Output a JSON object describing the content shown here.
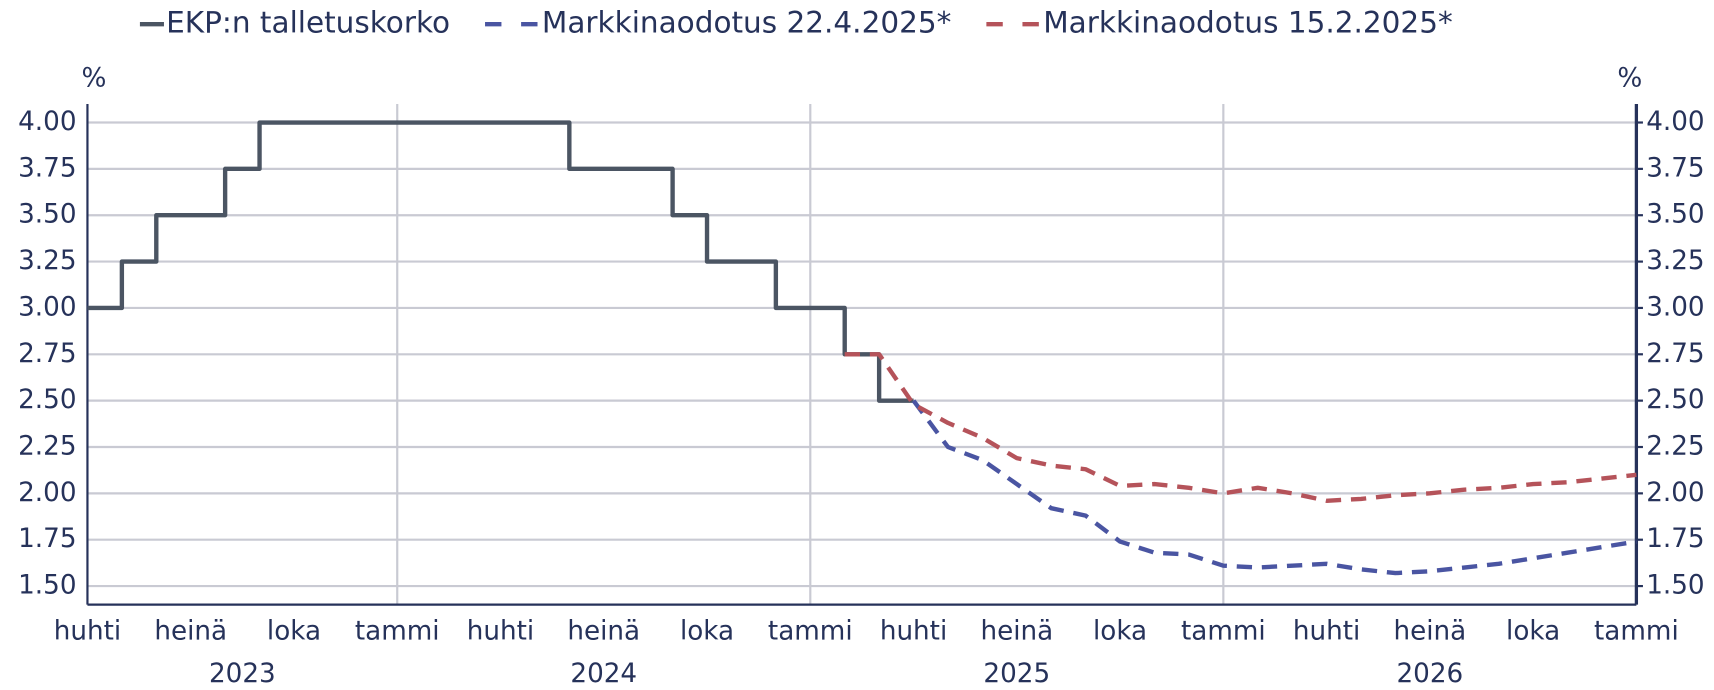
{
  "chart_data": {
    "type": "line",
    "y_unit": "%",
    "y2_unit": "%",
    "xlim": [
      "2023-04",
      "2027-01"
    ],
    "xticks": [
      {
        "value": "2023-04",
        "label": "huhti"
      },
      {
        "value": "2023-07",
        "label": "heinä"
      },
      {
        "value": "2023-10",
        "label": "loka"
      },
      {
        "value": "2024-01",
        "label": "tammi"
      },
      {
        "value": "2024-04",
        "label": "huhti"
      },
      {
        "value": "2024-07",
        "label": "heinä"
      },
      {
        "value": "2024-10",
        "label": "loka"
      },
      {
        "value": "2025-01",
        "label": "tammi"
      },
      {
        "value": "2025-04",
        "label": "huhti"
      },
      {
        "value": "2025-07",
        "label": "heinä"
      },
      {
        "value": "2025-10",
        "label": "loka"
      },
      {
        "value": "2026-01",
        "label": "tammi"
      },
      {
        "value": "2026-04",
        "label": "huhti"
      },
      {
        "value": "2026-07",
        "label": "heinä"
      },
      {
        "value": "2026-10",
        "label": "loka"
      },
      {
        "value": "2027-01",
        "label": "tammi"
      }
    ],
    "years": [
      2023,
      2024,
      2025,
      2026
    ],
    "ylim": [
      1.4,
      4.1
    ],
    "yticks": [
      {
        "value": 1.5,
        "label": "1.50"
      },
      {
        "value": 1.75,
        "label": "1.75"
      },
      {
        "value": 2,
        "label": "2.00"
      },
      {
        "value": 2.25,
        "label": "2.25"
      },
      {
        "value": 2.5,
        "label": "2.50"
      },
      {
        "value": 2.75,
        "label": "2.75"
      },
      {
        "value": 3,
        "label": "3.00"
      },
      {
        "value": 3.25,
        "label": "3.25"
      },
      {
        "value": 3.5,
        "label": "3.50"
      },
      {
        "value": 3.75,
        "label": "3.75"
      },
      {
        "value": 4,
        "label": "4.00"
      }
    ],
    "y2lim": [
      1.4,
      4.1
    ],
    "y2ticks": [
      {
        "value": 1.5,
        "label": "1.50"
      },
      {
        "value": 1.75,
        "label": "1.75"
      },
      {
        "value": 2,
        "label": "2.00"
      },
      {
        "value": 2.25,
        "label": "2.25"
      },
      {
        "value": 2.5,
        "label": "2.50"
      },
      {
        "value": 2.75,
        "label": "2.75"
      },
      {
        "value": 3,
        "label": "3.00"
      },
      {
        "value": 3.25,
        "label": "3.25"
      },
      {
        "value": 3.5,
        "label": "3.50"
      },
      {
        "value": 3.75,
        "label": "3.75"
      },
      {
        "value": 4,
        "label": "4.00"
      }
    ],
    "grid": true,
    "legend": "top",
    "series": [
      {
        "name": "EKP:n talletuskorko",
        "color": "#4b5563",
        "step": true,
        "dashed": false,
        "x": [
          "2023-04",
          "2023-05",
          "2023-06",
          "2023-07",
          "2023-08",
          "2023-09",
          "2023-10",
          "2023-11",
          "2023-12",
          "2024-01",
          "2024-02",
          "2024-03",
          "2024-04",
          "2024-05",
          "2024-06",
          "2024-07",
          "2024-08",
          "2024-09",
          "2024-10",
          "2024-11",
          "2024-12",
          "2025-01",
          "2025-02",
          "2025-03",
          "2025-04"
        ],
        "values": [
          3.0,
          3.25,
          3.5,
          3.5,
          3.75,
          4.0,
          4.0,
          4.0,
          4.0,
          4.0,
          4.0,
          4.0,
          4.0,
          4.0,
          3.75,
          3.75,
          3.75,
          3.5,
          3.25,
          3.25,
          3.0,
          3.0,
          2.75,
          2.5,
          2.5
        ]
      },
      {
        "name": "Markkinaodotus 22.4.2025*",
        "color": "#4a55a2",
        "step": false,
        "dashed": true,
        "x": [
          "2025-04",
          "2025-05",
          "2025-06",
          "2025-07",
          "2025-08",
          "2025-09",
          "2025-10",
          "2025-11",
          "2025-12",
          "2026-01",
          "2026-02",
          "2026-03",
          "2026-04",
          "2026-05",
          "2026-06",
          "2026-07",
          "2026-08",
          "2026-09",
          "2026-10",
          "2026-11",
          "2026-12",
          "2027-01"
        ],
        "values": [
          2.5,
          2.25,
          2.18,
          2.05,
          1.92,
          1.88,
          1.74,
          1.68,
          1.67,
          1.61,
          1.6,
          1.61,
          1.62,
          1.59,
          1.57,
          1.58,
          1.6,
          1.62,
          1.65,
          1.68,
          1.71,
          1.74
        ]
      },
      {
        "name": "Markkinaodotus 15.2.2025*",
        "color": "#b5535a",
        "step": false,
        "dashed": true,
        "x": [
          "2025-02",
          "2025-03",
          "2025-04",
          "2025-05",
          "2025-06",
          "2025-07",
          "2025-08",
          "2025-09",
          "2025-10",
          "2025-11",
          "2025-12",
          "2026-01",
          "2026-02",
          "2026-03",
          "2026-04",
          "2026-05",
          "2026-06",
          "2026-07",
          "2026-08",
          "2026-09",
          "2026-10",
          "2026-11",
          "2026-12",
          "2027-01"
        ],
        "values": [
          2.75,
          2.75,
          2.48,
          2.38,
          2.3,
          2.19,
          2.15,
          2.13,
          2.04,
          2.05,
          2.03,
          2.0,
          2.03,
          2.0,
          1.96,
          1.97,
          1.99,
          2.0,
          2.02,
          2.03,
          2.05,
          2.06,
          2.08,
          2.1
        ]
      }
    ]
  }
}
